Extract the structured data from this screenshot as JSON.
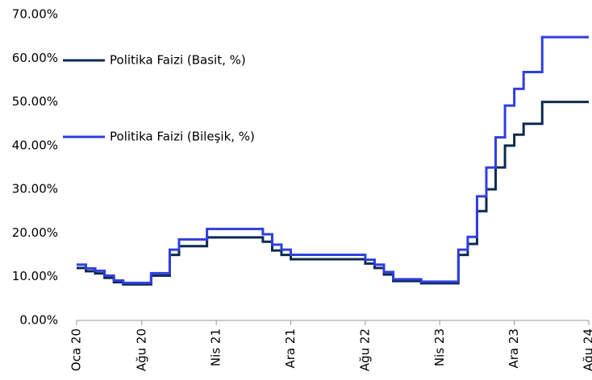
{
  "chart_data": {
    "type": "line",
    "categories": [
      "Oca 20",
      null,
      null,
      null,
      null,
      null,
      null,
      "Ağu 20",
      null,
      null,
      null,
      null,
      null,
      null,
      null,
      "Nis 21",
      null,
      null,
      null,
      null,
      null,
      null,
      null,
      "Ara 21",
      null,
      null,
      null,
      null,
      null,
      null,
      null,
      "Ağu 22",
      null,
      null,
      null,
      null,
      null,
      null,
      null,
      "Nis 23",
      null,
      null,
      null,
      null,
      null,
      null,
      null,
      "Ara 23",
      null,
      null,
      null,
      null,
      null,
      null,
      null,
      "Ağu 24"
    ],
    "series": [
      {
        "name": "Politika Faizi (Basit, %)",
        "color": "#0d2a4f",
        "values": [
          12,
          11.25,
          10.75,
          9.75,
          8.75,
          8.25,
          8.25,
          8.25,
          10.25,
          10.25,
          15,
          17,
          17,
          17,
          19,
          19,
          19,
          19,
          19,
          19,
          18,
          16,
          15,
          14,
          14,
          14,
          14,
          14,
          14,
          14,
          14,
          13,
          12,
          10.5,
          9,
          9,
          9,
          8.5,
          8.5,
          8.5,
          8.5,
          15,
          17.5,
          25,
          30,
          35,
          40,
          42.5,
          45,
          45,
          50,
          50,
          50,
          50,
          50,
          50
        ]
      },
      {
        "name": "Politika Faizi (Bileşik, %)",
        "color": "#2f3fe0",
        "values": [
          12.75,
          11.91,
          11.35,
          10.24,
          9.14,
          8.6,
          8.6,
          8.6,
          10.79,
          10.79,
          16.18,
          18.53,
          18.53,
          18.53,
          20.92,
          20.92,
          20.92,
          20.92,
          20.92,
          20.92,
          19.72,
          17.35,
          16.18,
          15.02,
          15.02,
          15.02,
          15.02,
          15.02,
          15.02,
          15.02,
          15.02,
          13.88,
          12.75,
          11.07,
          9.42,
          9.42,
          9.42,
          8.87,
          8.87,
          8.87,
          8.87,
          16.18,
          19.12,
          28.39,
          34.97,
          41.88,
          49.15,
          52.98,
          56.82,
          56.82,
          64.82,
          64.82,
          64.82,
          64.82,
          64.82,
          64.82
        ]
      }
    ],
    "ylim": [
      0,
      70
    ],
    "yticks": [
      {
        "value": 0,
        "label": "0.00%"
      },
      {
        "value": 10,
        "label": "10.00%"
      },
      {
        "value": 20,
        "label": "20.00%"
      },
      {
        "value": 30,
        "label": "30.00%"
      },
      {
        "value": 40,
        "label": "40.00%"
      },
      {
        "value": 50,
        "label": "50.00%"
      },
      {
        "value": 60,
        "label": "60.00%"
      },
      {
        "value": 70,
        "label": "70.00%"
      }
    ],
    "grid": false
  }
}
